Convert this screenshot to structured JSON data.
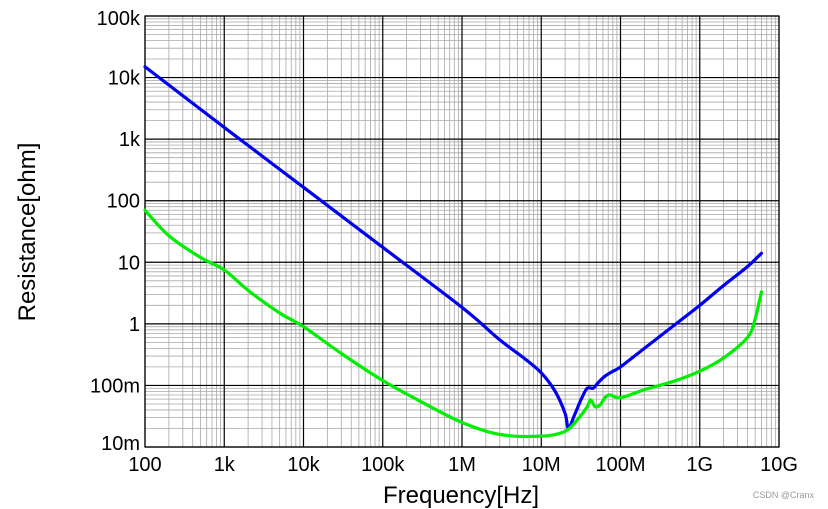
{
  "chart_data": {
    "type": "line",
    "title": "",
    "xlabel": "Frequency[Hz]",
    "ylabel": "Resistance[ohm]",
    "x_scale": "log",
    "y_scale": "log",
    "xlim": [
      100,
      10000000000
    ],
    "ylim": [
      0.01,
      100000
    ],
    "grid": true,
    "legend": "none",
    "x_ticks": [
      {
        "value": 100,
        "label": "100"
      },
      {
        "value": 1000,
        "label": "1k"
      },
      {
        "value": 10000,
        "label": "10k"
      },
      {
        "value": 100000,
        "label": "100k"
      },
      {
        "value": 1000000,
        "label": "1M"
      },
      {
        "value": 10000000,
        "label": "10M"
      },
      {
        "value": 100000000,
        "label": "100M"
      },
      {
        "value": 1000000000,
        "label": "1G"
      },
      {
        "value": 10000000000,
        "label": "10G"
      }
    ],
    "y_ticks": [
      {
        "value": 0.01,
        "label": "10m"
      },
      {
        "value": 0.1,
        "label": "100m"
      },
      {
        "value": 1,
        "label": "1"
      },
      {
        "value": 10,
        "label": "10"
      },
      {
        "value": 100,
        "label": "100"
      },
      {
        "value": 1000,
        "label": "1k"
      },
      {
        "value": 10000,
        "label": "10k"
      },
      {
        "value": 100000,
        "label": "100k"
      }
    ],
    "series": [
      {
        "color": "#0000ee",
        "points": [
          [
            100,
            15000
          ],
          [
            1000,
            1550
          ],
          [
            10000,
            165
          ],
          [
            100000,
            17.5
          ],
          [
            1000000,
            1.85
          ],
          [
            3000000,
            0.55
          ],
          [
            6000000,
            0.28
          ],
          [
            10000000,
            0.16
          ],
          [
            15000000,
            0.08
          ],
          [
            20000000,
            0.035
          ],
          [
            22000000,
            0.02
          ],
          [
            26000000,
            0.032
          ],
          [
            32000000,
            0.06
          ],
          [
            38000000,
            0.09
          ],
          [
            45000000,
            0.09
          ],
          [
            52000000,
            0.11
          ],
          [
            63000000,
            0.14
          ],
          [
            80000000,
            0.17
          ],
          [
            100000000,
            0.2
          ],
          [
            200000000,
            0.4
          ],
          [
            500000000,
            1.0
          ],
          [
            1000000000,
            2.0
          ],
          [
            2000000000,
            4.2
          ],
          [
            4000000000,
            8.5
          ],
          [
            6000000000,
            14
          ]
        ]
      },
      {
        "color": "#00ee00",
        "points": [
          [
            100,
            70
          ],
          [
            200,
            27
          ],
          [
            500,
            12
          ],
          [
            1000,
            7.5
          ],
          [
            2000,
            3.5
          ],
          [
            5000,
            1.5
          ],
          [
            10000,
            0.9
          ],
          [
            30000,
            0.33
          ],
          [
            100000,
            0.12
          ],
          [
            300000,
            0.055
          ],
          [
            1000000,
            0.025
          ],
          [
            3000000,
            0.016
          ],
          [
            10000000,
            0.015
          ],
          [
            20000000,
            0.018
          ],
          [
            30000000,
            0.03
          ],
          [
            38000000,
            0.045
          ],
          [
            42000000,
            0.058
          ],
          [
            48000000,
            0.045
          ],
          [
            55000000,
            0.048
          ],
          [
            65000000,
            0.065
          ],
          [
            75000000,
            0.07
          ],
          [
            100000000,
            0.063
          ],
          [
            200000000,
            0.085
          ],
          [
            500000000,
            0.12
          ],
          [
            1000000000,
            0.17
          ],
          [
            2000000000,
            0.28
          ],
          [
            4000000000,
            0.6
          ],
          [
            5000000000,
            1.2
          ],
          [
            6000000000,
            3.3
          ]
        ]
      }
    ]
  },
  "watermark": "CSDN @Cranx"
}
